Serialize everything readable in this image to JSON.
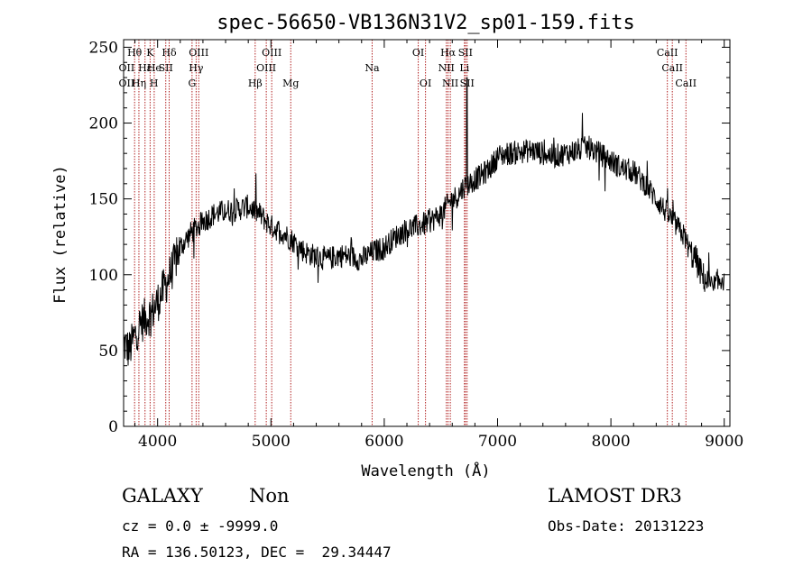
{
  "chart_data": {
    "type": "line",
    "title": "spec-56650-VB136N31V2_sp01-159.fits",
    "xlabel": "Wavelength (Å)",
    "ylabel": "Flux (relative)",
    "xlim": [
      3700,
      9050
    ],
    "ylim": [
      0,
      255
    ],
    "xticks": [
      4000,
      5000,
      6000,
      7000,
      8000,
      9000
    ],
    "yticks": [
      0,
      50,
      100,
      150,
      200,
      250
    ],
    "grid": false,
    "line_color": "#000000",
    "marker_color": "#b22222",
    "spectrum_anchors": {
      "x": [
        3700,
        3750,
        3800,
        3850,
        3900,
        3950,
        4000,
        4050,
        4100,
        4150,
        4200,
        4300,
        4400,
        4500,
        4600,
        4700,
        4800,
        4900,
        5000,
        5100,
        5200,
        5300,
        5400,
        5500,
        5600,
        5700,
        5800,
        5900,
        6000,
        6100,
        6200,
        6300,
        6400,
        6500,
        6550,
        6600,
        6650,
        6700,
        6750,
        6800,
        6850,
        6900,
        6950,
        7000,
        7100,
        7200,
        7300,
        7400,
        7500,
        7600,
        7700,
        7800,
        7900,
        8000,
        8100,
        8200,
        8300,
        8400,
        8500,
        8600,
        8650,
        8700,
        8750,
        8800,
        8850,
        8900,
        8950,
        9000
      ],
      "y": [
        55,
        50,
        60,
        68,
        72,
        75,
        82,
        90,
        98,
        108,
        118,
        128,
        135,
        140,
        142,
        143,
        145,
        140,
        132,
        128,
        122,
        115,
        112,
        110,
        113,
        112,
        110,
        115,
        118,
        125,
        130,
        132,
        135,
        140,
        145,
        150,
        152,
        158,
        160,
        163,
        165,
        168,
        172,
        178,
        180,
        181,
        182,
        180,
        178,
        180,
        182,
        184,
        180,
        175,
        170,
        168,
        160,
        150,
        140,
        130,
        125,
        115,
        110,
        100,
        95,
        90,
        95,
        100
      ]
    },
    "spectral_lines": [
      {
        "name": "Hθ",
        "wavelength": 3797,
        "row": 1
      },
      {
        "name": "OII",
        "wavelength": 3727,
        "row": 2
      },
      {
        "name": "OII",
        "wavelength": 3727,
        "row": 3
      },
      {
        "name": "Hε",
        "wavelength": 3889,
        "row": 2
      },
      {
        "name": "Hη",
        "wavelength": 3835,
        "row": 3
      },
      {
        "name": "K",
        "wavelength": 3934,
        "row": 1
      },
      {
        "name": "He",
        "wavelength": 3970,
        "row": 2
      },
      {
        "name": "H",
        "wavelength": 3968,
        "row": 3
      },
      {
        "name": "SII",
        "wavelength": 4072,
        "row": 2
      },
      {
        "name": "Hδ",
        "wavelength": 4102,
        "row": 1
      },
      {
        "name": "OIII",
        "wavelength": 4363,
        "row": 1
      },
      {
        "name": "Hγ",
        "wavelength": 4340,
        "row": 2
      },
      {
        "name": "G",
        "wavelength": 4304,
        "row": 3
      },
      {
        "name": "Hβ",
        "wavelength": 4861,
        "row": 3
      },
      {
        "name": "OIII",
        "wavelength": 5007,
        "row": 1
      },
      {
        "name": "OIII",
        "wavelength": 4959,
        "row": 2
      },
      {
        "name": "Mg",
        "wavelength": 5175,
        "row": 3
      },
      {
        "name": "Na",
        "wavelength": 5893,
        "row": 2
      },
      {
        "name": "OI",
        "wavelength": 6300,
        "row": 1
      },
      {
        "name": "OI",
        "wavelength": 6364,
        "row": 3
      },
      {
        "name": "Hα",
        "wavelength": 6563,
        "row": 1
      },
      {
        "name": "NII",
        "wavelength": 6548,
        "row": 2
      },
      {
        "name": "NII",
        "wavelength": 6583,
        "row": 3
      },
      {
        "name": "SII",
        "wavelength": 6716,
        "row": 1
      },
      {
        "name": "Li",
        "wavelength": 6708,
        "row": 2
      },
      {
        "name": "SII",
        "wavelength": 6731,
        "row": 3
      },
      {
        "name": "CaII",
        "wavelength": 8498,
        "row": 1
      },
      {
        "name": "CaII",
        "wavelength": 8542,
        "row": 2
      },
      {
        "name": "CaII",
        "wavelength": 8662,
        "row": 3
      }
    ],
    "marker_lines": [
      3797,
      3835,
      3889,
      3934,
      3970,
      4072,
      4102,
      4304,
      4340,
      4363,
      4861,
      4959,
      5007,
      5175,
      5893,
      6300,
      6364,
      6548,
      6563,
      6583,
      6708,
      6716,
      6731,
      8498,
      8542,
      8662
    ]
  },
  "info": {
    "class": "GALAXY",
    "subclass": "Non",
    "survey": "LAMOST DR3",
    "cz": "cz = 0.0 ± -9999.0",
    "obs_date": "Obs-Date: 20131223",
    "coords": "RA = 136.50123, DEC =  29.34447"
  }
}
